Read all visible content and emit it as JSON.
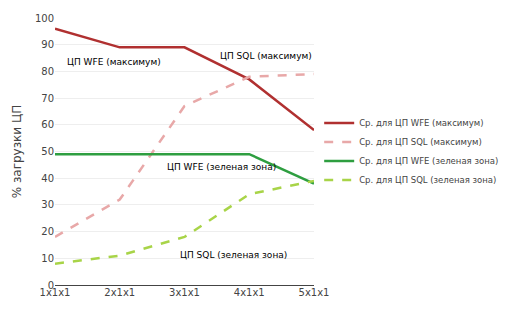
{
  "chart_data": {
    "type": "line",
    "categories": [
      "1x1x1",
      "2x1x1",
      "3x1x1",
      "4x1x1",
      "5x1x1"
    ],
    "series": [
      {
        "name": "Ср. для ЦП WFE (максимум)",
        "color": "#b03030",
        "line_style": "solid",
        "values": [
          96,
          89,
          89,
          77,
          58
        ]
      },
      {
        "name": "Ср. для ЦП SQL (максимум)",
        "color": "#e8a8a8",
        "line_style": "dashed",
        "values": [
          18,
          32,
          67,
          78,
          79
        ]
      },
      {
        "name": "Ср. для ЦП WFE (зеленая зона)",
        "color": "#2e9e40",
        "line_style": "solid",
        "values": [
          49,
          49,
          49,
          49,
          38
        ]
      },
      {
        "name": "Ср. для ЦП SQL (зеленая зона)",
        "color": "#a8d448",
        "line_style": "dashed",
        "values": [
          8,
          11,
          18,
          34,
          39
        ]
      }
    ],
    "ylabel": "% загрузки ЦП",
    "ylim": [
      0,
      100
    ],
    "yticks": [
      0,
      10,
      20,
      30,
      40,
      50,
      60,
      70,
      80,
      90,
      100
    ],
    "grid": true,
    "legend": "right",
    "annotations": [
      "ЦП SQL (максимум)",
      "ЦП WFE (максимум)",
      "ЦП WFE (зеленая зона)",
      "ЦП SQL (зеленая зона)"
    ]
  }
}
